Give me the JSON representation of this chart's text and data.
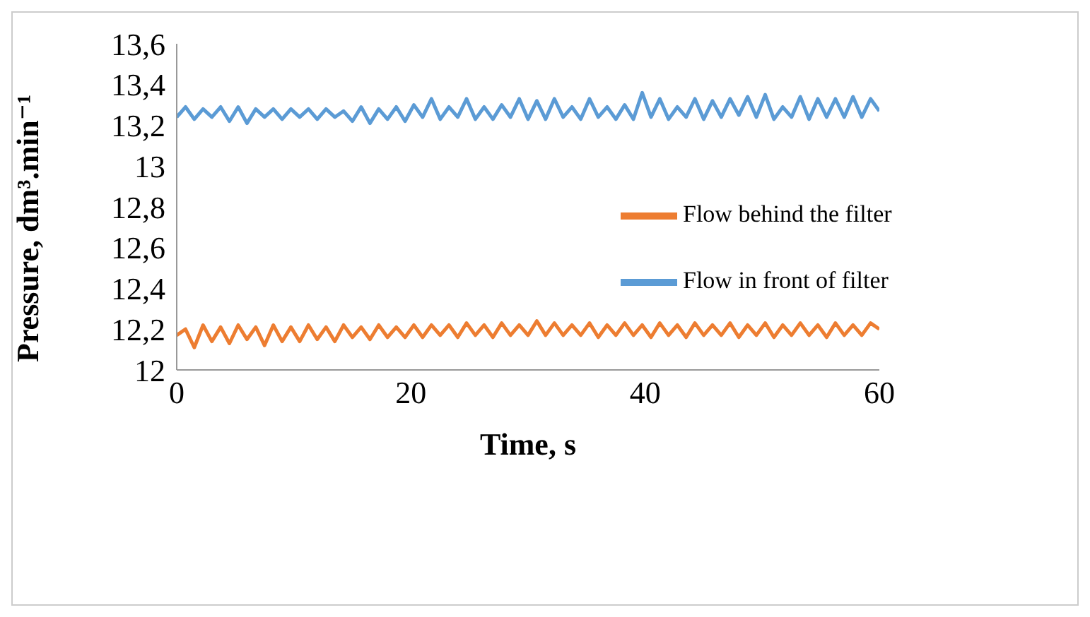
{
  "chart_data": {
    "type": "line",
    "xlabel": "Time, s",
    "ylabel": "Pressure, dm³.min⁻¹",
    "x": [
      0,
      0.75,
      1.5,
      2.25,
      3,
      3.75,
      4.5,
      5.25,
      6,
      6.75,
      7.5,
      8.25,
      9,
      9.75,
      10.5,
      11.25,
      12,
      12.75,
      13.5,
      14.25,
      15,
      15.75,
      16.5,
      17.25,
      18,
      18.75,
      19.5,
      20.25,
      21,
      21.75,
      22.5,
      23.25,
      24,
      24.75,
      25.5,
      26.25,
      27,
      27.75,
      28.5,
      29.25,
      30,
      30.75,
      31.5,
      32.25,
      33,
      33.75,
      34.5,
      35.25,
      36,
      36.75,
      37.5,
      38.25,
      39,
      39.75,
      40.5,
      41.25,
      42,
      42.75,
      43.5,
      44.25,
      45,
      45.75,
      46.5,
      47.25,
      48,
      48.75,
      49.5,
      50.25,
      51,
      51.75,
      52.5,
      53.25,
      54,
      54.75,
      55.5,
      56.25,
      57,
      57.75,
      58.5,
      59.25,
      60
    ],
    "series": [
      {
        "name": "Flow in front of filter",
        "color": "#5b9bd5",
        "values": [
          13.24,
          13.29,
          13.23,
          13.28,
          13.24,
          13.29,
          13.22,
          13.29,
          13.21,
          13.28,
          13.24,
          13.28,
          13.23,
          13.28,
          13.24,
          13.28,
          13.23,
          13.28,
          13.24,
          13.27,
          13.22,
          13.29,
          13.21,
          13.28,
          13.23,
          13.29,
          13.22,
          13.3,
          13.24,
          13.33,
          13.23,
          13.29,
          13.24,
          13.33,
          13.23,
          13.29,
          13.23,
          13.3,
          13.24,
          13.33,
          13.23,
          13.32,
          13.23,
          13.33,
          13.24,
          13.29,
          13.23,
          13.33,
          13.24,
          13.29,
          13.23,
          13.3,
          13.23,
          13.36,
          13.24,
          13.33,
          13.23,
          13.29,
          13.24,
          13.33,
          13.23,
          13.32,
          13.24,
          13.33,
          13.25,
          13.34,
          13.24,
          13.35,
          13.23,
          13.29,
          13.24,
          13.34,
          13.23,
          13.33,
          13.24,
          13.33,
          13.24,
          13.34,
          13.24,
          13.33,
          13.27
        ]
      },
      {
        "name": "Flow behind the filter",
        "color": "#ed7d31",
        "values": [
          12.17,
          12.2,
          12.11,
          12.22,
          12.14,
          12.21,
          12.13,
          12.22,
          12.15,
          12.21,
          12.12,
          12.22,
          12.14,
          12.21,
          12.14,
          12.22,
          12.15,
          12.21,
          12.14,
          12.22,
          12.16,
          12.21,
          12.15,
          12.22,
          12.16,
          12.21,
          12.16,
          12.22,
          12.16,
          12.22,
          12.17,
          12.22,
          12.16,
          12.23,
          12.17,
          12.22,
          12.16,
          12.23,
          12.17,
          12.22,
          12.17,
          12.24,
          12.17,
          12.23,
          12.17,
          12.22,
          12.17,
          12.23,
          12.16,
          12.22,
          12.17,
          12.23,
          12.17,
          12.22,
          12.16,
          12.23,
          12.17,
          12.22,
          12.16,
          12.23,
          12.17,
          12.22,
          12.17,
          12.23,
          12.16,
          12.22,
          12.17,
          12.23,
          12.16,
          12.22,
          12.17,
          12.23,
          12.17,
          12.22,
          12.16,
          12.23,
          12.17,
          12.22,
          12.17,
          12.23,
          12.2
        ]
      }
    ],
    "xlim": [
      0,
      60
    ],
    "xticks": [
      0,
      20,
      40,
      60
    ],
    "ylim": [
      12,
      13.6
    ],
    "yticks": [
      {
        "value": 12,
        "label": "12"
      },
      {
        "value": 12.2,
        "label": "12,2"
      },
      {
        "value": 12.4,
        "label": "12,4"
      },
      {
        "value": 12.6,
        "label": "12,6"
      },
      {
        "value": 12.8,
        "label": "12,8"
      },
      {
        "value": 13,
        "label": "13"
      },
      {
        "value": 13.2,
        "label": "13,2"
      },
      {
        "value": 13.4,
        "label": "13,4"
      },
      {
        "value": 13.6,
        "label": "13,6"
      }
    ],
    "legend": "right",
    "grid": false,
    "marker": "none",
    "line_style": "solid"
  }
}
